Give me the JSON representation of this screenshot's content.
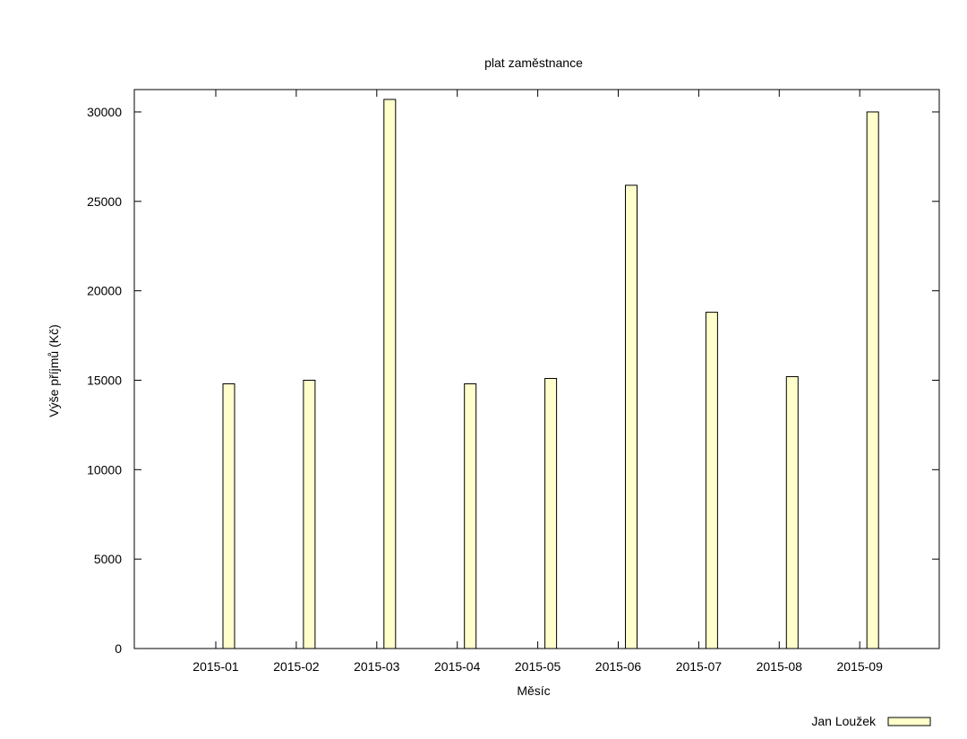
{
  "chart_data": {
    "type": "bar",
    "title": "plat zaměstnance",
    "xlabel": "Měsíc",
    "ylabel": "Výše příjmů (Kč)",
    "categories": [
      "2015-01",
      "2015-02",
      "2015-03",
      "2015-04",
      "2015-05",
      "2015-06",
      "2015-07",
      "2015-08",
      "2015-09"
    ],
    "series": [
      {
        "name": "Jan Loužek",
        "color": "#ffffcc",
        "values": [
          14800,
          15000,
          30700,
          14800,
          15100,
          25900,
          18800,
          15200,
          30000
        ]
      }
    ],
    "ylim": [
      0,
      31250
    ],
    "yticks": [
      0,
      5000,
      10000,
      15000,
      20000,
      25000,
      30000
    ],
    "grid": false,
    "legend_position": "bottom-right"
  }
}
